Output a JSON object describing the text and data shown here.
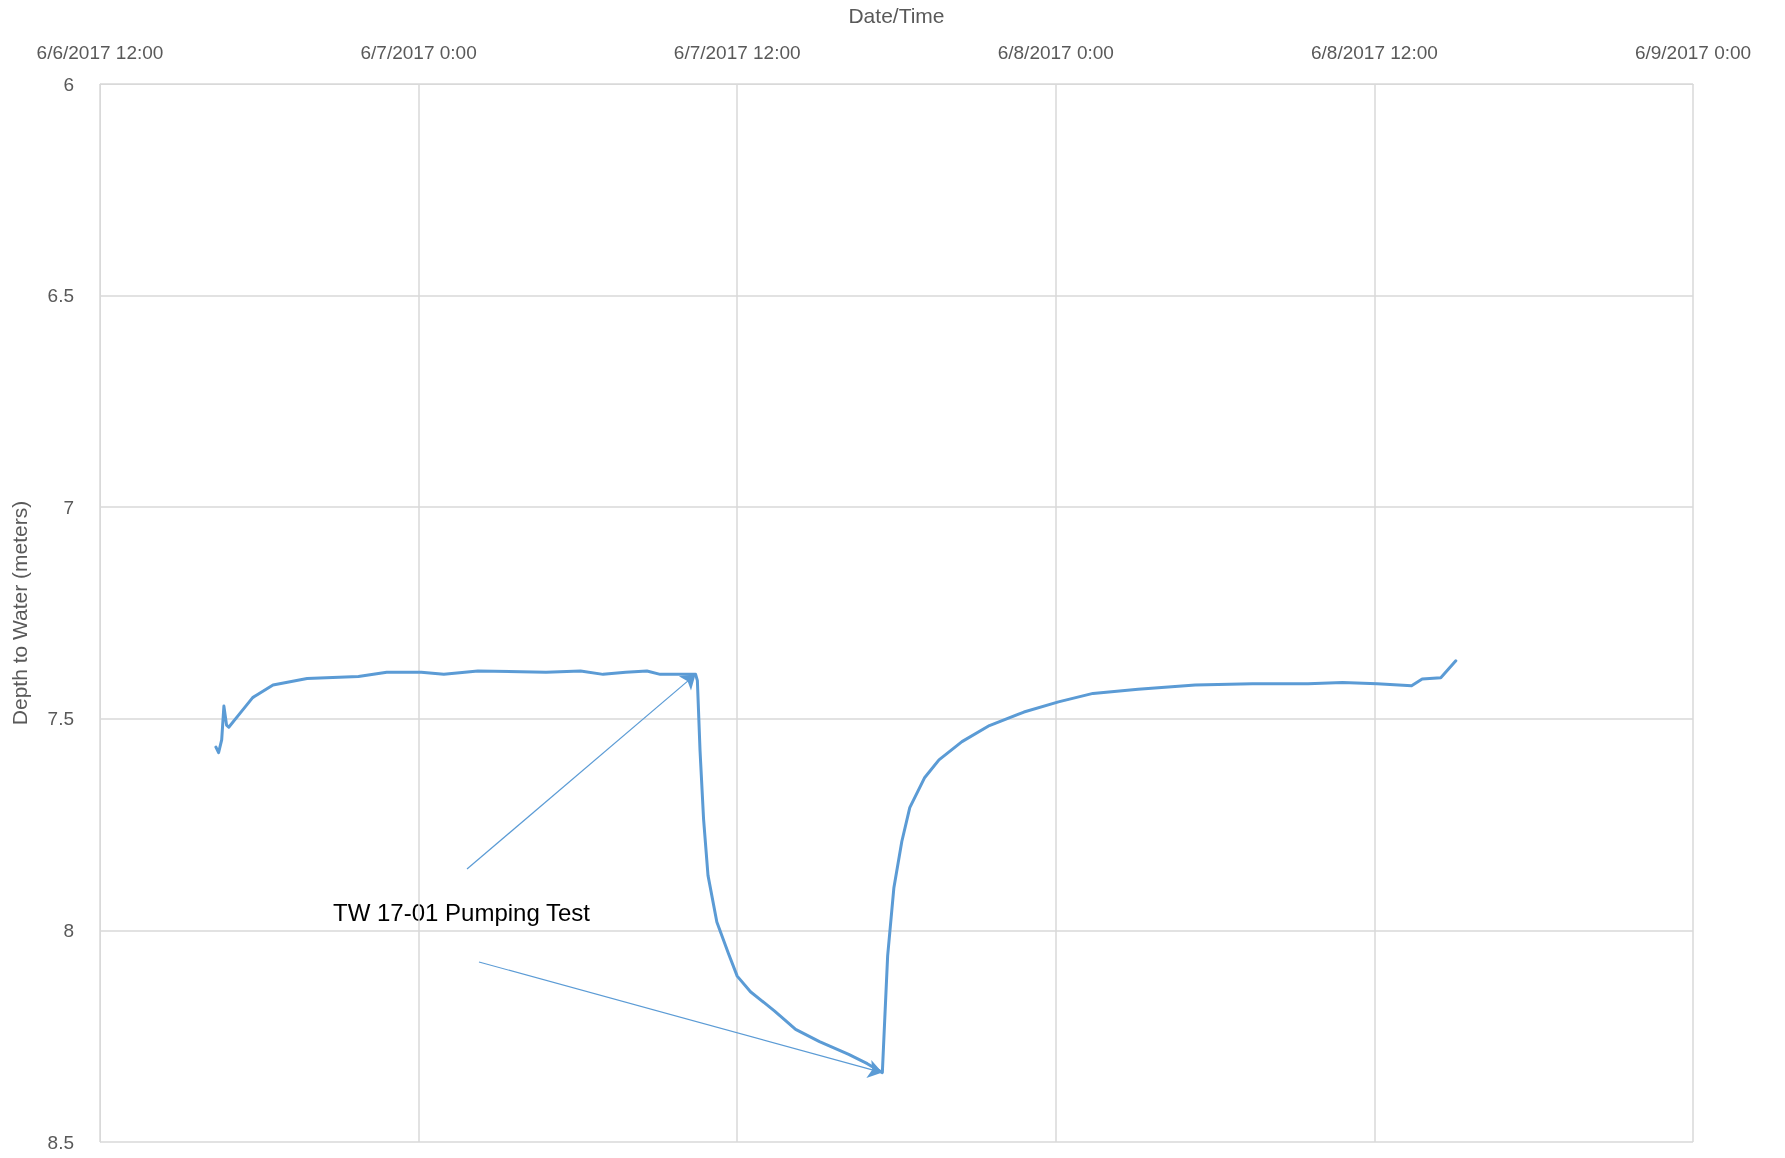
{
  "chart_data": {
    "type": "line",
    "xlabel": "Date/Time",
    "ylabel": "Depth to Water (meters)",
    "xlim": [
      "2017-06-06T12:00",
      "2017-06-09T00:00"
    ],
    "xticks": [
      {
        "value": "2017-06-06T12:00",
        "label": "6/6/2017 12:00"
      },
      {
        "value": "2017-06-07T00:00",
        "label": "6/7/2017 0:00"
      },
      {
        "value": "2017-06-07T12:00",
        "label": "6/7/2017 12:00"
      },
      {
        "value": "2017-06-08T00:00",
        "label": "6/8/2017 0:00"
      },
      {
        "value": "2017-06-08T12:00",
        "label": "6/8/2017 12:00"
      },
      {
        "value": "2017-06-09T00:00",
        "label": "6/9/2017 0:00"
      }
    ],
    "ylim": [
      8.5,
      6
    ],
    "yticks": [
      6,
      6.5,
      7,
      7.5,
      8,
      8.5
    ],
    "grid": true,
    "marker": "none",
    "line_style": "solid",
    "annotations": [
      {
        "text": "TW 17-01 Pumping Test",
        "x": "2017-06-07T10:26",
        "y": 7.395
      }
    ],
    "x": [
      "2017-06-06T16:22",
      "2017-06-06T16:28",
      "2017-06-06T16:35",
      "2017-06-06T16:40",
      "2017-06-06T16:46",
      "2017-06-06T16:51",
      "2017-06-06T17:14",
      "2017-06-06T17:45",
      "2017-06-06T18:31",
      "2017-06-06T19:48",
      "2017-06-06T21:44",
      "2017-06-06T22:48",
      "2017-06-07T00:06",
      "2017-06-07T00:57",
      "2017-06-07T02:14",
      "2017-06-07T04:48",
      "2017-06-07T06:06",
      "2017-06-07T06:57",
      "2017-06-07T07:48",
      "2017-06-07T08:36",
      "2017-06-07T09:06",
      "2017-06-07T10:26",
      "2017-06-07T10:30",
      "2017-06-07T10:36",
      "2017-06-07T10:44",
      "2017-06-07T10:54",
      "2017-06-07T11:14",
      "2017-06-07T11:40",
      "2017-06-07T12:00",
      "2017-06-07T12:30",
      "2017-06-07T13:24",
      "2017-06-07T14:12",
      "2017-06-07T15:06",
      "2017-06-07T16:12",
      "2017-06-07T16:54",
      "2017-06-07T17:28",
      "2017-06-07T17:33",
      "2017-06-07T17:40",
      "2017-06-07T17:54",
      "2017-06-07T18:12",
      "2017-06-07T18:30",
      "2017-06-07T19:03",
      "2017-06-07T19:36",
      "2017-06-07T20:28",
      "2017-06-07T21:30",
      "2017-06-07T22:48",
      "2017-06-08T00:06",
      "2017-06-08T01:24",
      "2017-06-08T03:06",
      "2017-06-08T05:15",
      "2017-06-08T07:24",
      "2017-06-08T09:30",
      "2017-06-08T10:48",
      "2017-06-08T12:06",
      "2017-06-08T13:24",
      "2017-06-08T13:48",
      "2017-06-08T14:30",
      "2017-06-08T14:48",
      "2017-06-08T15:04"
    ],
    "series": [
      {
        "color": "#5b9bd5",
        "values": [
          7.567,
          7.58,
          7.55,
          7.47,
          7.515,
          7.52,
          7.49,
          7.45,
          7.42,
          7.405,
          7.4,
          7.39,
          7.39,
          7.395,
          7.387,
          7.39,
          7.387,
          7.395,
          7.39,
          7.387,
          7.395,
          7.395,
          7.41,
          7.575,
          7.737,
          7.87,
          7.98,
          8.054,
          8.108,
          8.145,
          8.19,
          8.234,
          8.263,
          8.293,
          8.315,
          8.336,
          8.22,
          8.06,
          7.9,
          7.79,
          7.71,
          7.64,
          7.597,
          7.554,
          7.516,
          7.484,
          7.46,
          7.44,
          7.43,
          7.42,
          7.417,
          7.417,
          7.414,
          7.417,
          7.422,
          7.406,
          7.403,
          7.382,
          7.363
        ]
      }
    ]
  }
}
